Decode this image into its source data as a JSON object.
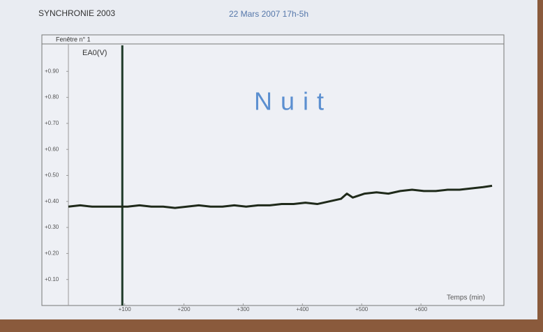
{
  "chart_data": {
    "type": "line",
    "software": "SYNCHRONIE 2003",
    "date": "22 Mars 2007 17h-5h",
    "window": "Fenêtre n° 1",
    "title": "Nuit",
    "ylabel": "EA0(V)",
    "xlabel": "Temps (min)",
    "xlim": [
      5,
      740
    ],
    "ylim": [
      0,
      1
    ],
    "xticks": [
      {
        "value": 100,
        "label": "+100"
      },
      {
        "value": 200,
        "label": "+200"
      },
      {
        "value": 300,
        "label": "+300"
      },
      {
        "value": 400,
        "label": "+400"
      },
      {
        "value": 500,
        "label": "+500"
      },
      {
        "value": 600,
        "label": "+600"
      }
    ],
    "yticks": [
      {
        "value": 0.1,
        "label": "+0.10"
      },
      {
        "value": 0.2,
        "label": "+0.20"
      },
      {
        "value": 0.3,
        "label": "+0.30"
      },
      {
        "value": 0.4,
        "label": "+0.40"
      },
      {
        "value": 0.5,
        "label": "+0.50"
      },
      {
        "value": 0.6,
        "label": "+0.60"
      },
      {
        "value": 0.7,
        "label": "+0.70"
      },
      {
        "value": 0.8,
        "label": "+0.80"
      },
      {
        "value": 0.9,
        "label": "+0.90"
      }
    ],
    "cursor": 96,
    "color": "#1f2a1a",
    "x": [
      5,
      25,
      45,
      65,
      85,
      105,
      125,
      145,
      165,
      185,
      205,
      225,
      245,
      265,
      285,
      305,
      325,
      345,
      365,
      385,
      405,
      425,
      445,
      465,
      475,
      485,
      505,
      525,
      545,
      565,
      585,
      605,
      625,
      645,
      665,
      685,
      705,
      720
    ],
    "values": [
      0.38,
      0.385,
      0.38,
      0.38,
      0.38,
      0.38,
      0.385,
      0.38,
      0.38,
      0.375,
      0.38,
      0.385,
      0.38,
      0.38,
      0.385,
      0.38,
      0.385,
      0.385,
      0.39,
      0.39,
      0.395,
      0.39,
      0.4,
      0.41,
      0.43,
      0.415,
      0.43,
      0.435,
      0.43,
      0.44,
      0.445,
      0.44,
      0.44,
      0.445,
      0.445,
      0.45,
      0.455,
      0.46
    ]
  }
}
